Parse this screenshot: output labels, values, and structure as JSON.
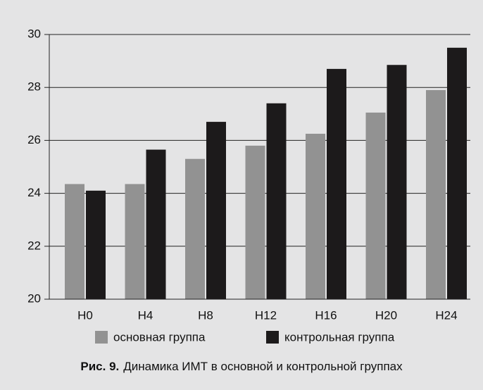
{
  "chart_data": {
    "type": "bar",
    "categories": [
      "H0",
      "H4",
      "H8",
      "H12",
      "H16",
      "H20",
      "H24"
    ],
    "series": [
      {
        "name": "основная группа",
        "color": "#929292",
        "values": [
          24.35,
          24.35,
          25.3,
          25.8,
          26.25,
          27.05,
          27.9
        ]
      },
      {
        "name": "контрольная группа",
        "color": "#1c1a1b",
        "values": [
          24.1,
          25.65,
          26.7,
          27.4,
          28.7,
          28.85,
          29.5
        ]
      }
    ],
    "ylim": [
      20,
      30
    ],
    "yticks": [
      20,
      22,
      24,
      26,
      28,
      30
    ],
    "grid": true,
    "caption_label": "Рис. 9.",
    "caption": "Динамика ИМТ в основной и контрольной группах"
  }
}
